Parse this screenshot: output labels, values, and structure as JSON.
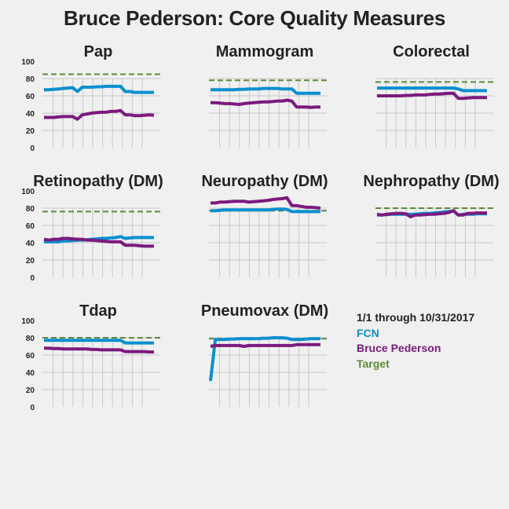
{
  "title": "Bruce Pederson: Core Quality Measures",
  "legend": {
    "period": "1/1 through 10/31/2017",
    "fcn_label": "FCN",
    "patient_label": "Bruce Pederson",
    "target_label": "Target"
  },
  "colors": {
    "fcn": "#0a8fd0",
    "patient": "#7b1a7e",
    "target": "#5e8a3a",
    "grid": "#c8c8c8",
    "text": "#222222",
    "background": "#f0f0f0"
  },
  "y_ticks": [
    "0",
    "20",
    "40",
    "60",
    "80",
    "100"
  ],
  "chart_data": [
    {
      "type": "line",
      "title": "Pap",
      "ylim": [
        0,
        100
      ],
      "show_y_ticks": true,
      "target": 85,
      "series": [
        {
          "name": "FCN",
          "values": [
            67,
            67,
            67.5,
            68,
            68.5,
            69,
            69.5,
            65,
            70,
            70,
            70,
            70.5,
            70.5,
            71,
            71,
            71,
            71,
            65,
            65,
            64,
            64,
            64,
            64,
            64
          ]
        },
        {
          "name": "Bruce Pederson",
          "values": [
            35,
            35,
            35,
            35.5,
            36,
            36,
            36,
            33,
            38,
            39,
            40,
            40.5,
            41,
            41,
            42,
            42,
            43,
            38,
            38,
            37,
            37,
            37.5,
            38,
            37.5
          ]
        }
      ]
    },
    {
      "type": "line",
      "title": "Mammogram",
      "ylim": [
        0,
        100
      ],
      "show_y_ticks": false,
      "target": 78,
      "series": [
        {
          "name": "FCN",
          "values": [
            67,
            67,
            67,
            67,
            67,
            67,
            67.5,
            67.5,
            68,
            68,
            68,
            68.5,
            68.5,
            68.5,
            68.5,
            68,
            68,
            68,
            63,
            63,
            63,
            63,
            63,
            63
          ]
        },
        {
          "name": "Bruce Pederson",
          "values": [
            52,
            52,
            51.5,
            51,
            51,
            50.5,
            50,
            51,
            51.5,
            52,
            52.5,
            53,
            53,
            53.5,
            54,
            54,
            55,
            54,
            47,
            47,
            47,
            46.5,
            47,
            47
          ]
        }
      ]
    },
    {
      "type": "line",
      "title": "Colorectal",
      "ylim": [
        0,
        100
      ],
      "show_y_ticks": false,
      "target": 76,
      "series": [
        {
          "name": "FCN",
          "values": [
            69,
            69,
            69,
            69,
            69,
            69,
            69,
            69,
            69,
            69,
            69,
            69,
            69,
            69,
            69,
            69,
            69,
            68,
            66,
            66,
            66,
            66,
            66,
            66
          ]
        },
        {
          "name": "Bruce Pederson",
          "values": [
            60,
            60,
            60,
            60,
            60,
            60,
            60.5,
            60.5,
            61,
            61,
            61,
            61.5,
            62,
            62,
            62.5,
            63,
            63,
            57,
            57,
            57.5,
            58,
            58,
            58,
            58
          ]
        }
      ]
    },
    {
      "type": "line",
      "title": "Retinopathy (DM)",
      "ylim": [
        0,
        100
      ],
      "show_y_ticks": true,
      "target": 76,
      "series": [
        {
          "name": "FCN",
          "values": [
            41,
            41,
            41,
            41,
            42,
            42,
            42.5,
            43,
            43,
            43.5,
            44,
            44.5,
            45,
            45,
            45.5,
            46,
            47,
            45,
            45.5,
            46,
            46,
            46,
            46,
            46
          ]
        },
        {
          "name": "Bruce Pederson",
          "values": [
            44,
            43,
            44,
            44,
            45,
            45,
            44.5,
            44,
            44,
            43,
            43,
            42.5,
            42,
            41.5,
            41,
            41,
            41,
            37,
            37,
            37,
            36.5,
            36,
            36,
            36
          ]
        }
      ]
    },
    {
      "type": "line",
      "title": "Neuropathy (DM)",
      "ylim": [
        0,
        100
      ],
      "show_y_ticks": false,
      "target": 77,
      "series": [
        {
          "name": "FCN",
          "values": [
            77,
            77,
            77.5,
            78,
            78,
            78,
            78,
            78,
            78,
            78,
            78,
            78,
            78,
            78.5,
            79,
            79,
            78.5,
            76,
            76,
            76,
            76,
            76,
            76,
            76
          ]
        },
        {
          "name": "Bruce Pederson",
          "values": [
            86,
            86,
            87,
            87,
            87.5,
            88,
            88,
            88,
            87,
            87.5,
            88,
            88.5,
            89,
            90,
            90.5,
            91,
            92,
            83,
            83,
            82,
            81,
            81,
            80.5,
            80
          ]
        }
      ]
    },
    {
      "type": "line",
      "title": "Nephropathy (DM)",
      "ylim": [
        0,
        100
      ],
      "show_y_ticks": false,
      "target": 80,
      "series": [
        {
          "name": "FCN",
          "values": [
            72,
            72,
            72.5,
            73,
            73,
            73,
            73,
            73,
            73,
            73.5,
            74,
            74,
            74.5,
            75,
            75.5,
            76,
            77,
            72,
            73,
            73,
            73,
            73.5,
            73.5,
            73.5
          ]
        },
        {
          "name": "Bruce Pederson",
          "values": [
            73,
            72,
            73,
            73.5,
            74,
            74,
            73.5,
            70,
            72,
            72,
            72.5,
            73,
            73,
            73.5,
            74,
            75,
            77,
            72,
            72,
            74,
            74,
            74.5,
            74.5,
            74.5
          ]
        }
      ]
    },
    {
      "type": "line",
      "title": "Tdap",
      "ylim": [
        0,
        100
      ],
      "show_y_ticks": true,
      "target": 80,
      "series": [
        {
          "name": "FCN",
          "values": [
            77,
            77,
            77,
            77,
            77,
            77,
            77,
            77,
            77,
            77,
            77,
            77,
            77,
            77,
            77,
            77,
            77,
            74,
            74,
            74,
            74,
            74,
            74,
            74
          ]
        },
        {
          "name": "Bruce Pederson",
          "values": [
            68,
            68,
            67.5,
            67.5,
            67,
            67,
            67,
            67,
            67,
            67,
            66.5,
            66.5,
            66,
            66,
            66,
            66,
            66,
            64,
            64,
            64,
            64,
            64,
            63.5,
            63.5
          ]
        }
      ]
    },
    {
      "type": "line",
      "title": "Pneumovax (DM)",
      "ylim": [
        0,
        100
      ],
      "show_y_ticks": false,
      "target": 79,
      "series": [
        {
          "name": "FCN",
          "values": [
            30,
            78,
            78,
            78,
            78.5,
            78.5,
            79,
            79,
            79,
            79,
            79,
            79.5,
            79.5,
            80,
            80,
            80,
            79.5,
            78,
            78,
            78,
            78.5,
            79,
            79,
            79
          ]
        },
        {
          "name": "Bruce Pederson",
          "values": [
            70,
            71,
            71,
            71,
            71,
            71,
            71,
            70,
            71,
            71,
            71,
            71,
            71,
            71,
            71,
            71,
            71,
            71,
            72,
            72,
            72,
            72,
            72,
            72
          ]
        }
      ]
    }
  ]
}
